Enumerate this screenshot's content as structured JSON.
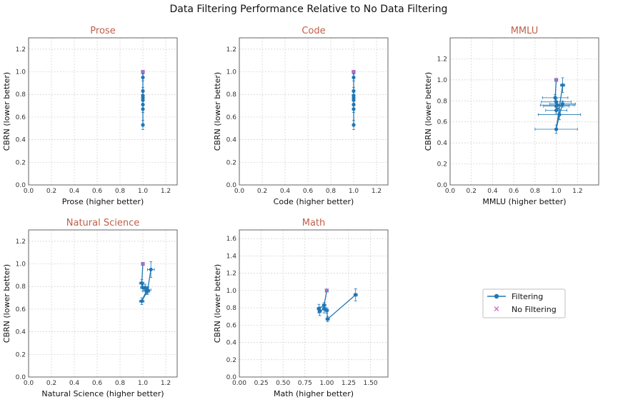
{
  "figure": {
    "title": "Data Filtering Performance Relative to No Data Filtering"
  },
  "colors": {
    "series": "#1f77b4",
    "no_filtering": "#d36cc6",
    "title": "#c0604a",
    "grid": "#cfcfcf",
    "axis": "#555555"
  },
  "legend": {
    "placement": "right of bottom row",
    "items": [
      {
        "label": "Filtering",
        "marker": "line-dot"
      },
      {
        "label": "No Filtering",
        "marker": "x"
      }
    ]
  },
  "chart_data": [
    {
      "type": "scatter",
      "title": "Prose",
      "xlabel": "Prose (higher better)",
      "ylabel": "CBRN (lower better)",
      "xlim": [
        0,
        1.3
      ],
      "ylim": [
        0,
        1.3
      ],
      "xticks": [
        0.0,
        0.2,
        0.4,
        0.6,
        0.8,
        1.0,
        1.2
      ],
      "yticks": [
        0.0,
        0.2,
        0.4,
        0.6,
        0.8,
        1.0,
        1.2
      ],
      "grid": true,
      "series": [
        {
          "name": "Filtering",
          "x": [
            1.0,
            1.0,
            1.0,
            1.0,
            1.0,
            1.0,
            1.0,
            1.0,
            1.0
          ],
          "y": [
            0.95,
            0.83,
            0.79,
            0.77,
            0.75,
            0.71,
            0.67,
            0.53,
            1.0
          ],
          "xerr": [
            0.005,
            0.005,
            0.005,
            0.005,
            0.005,
            0.005,
            0.005,
            0.005,
            0
          ],
          "yerr": [
            0.03,
            0.03,
            0.03,
            0.03,
            0.03,
            0.03,
            0.03,
            0.04,
            0
          ]
        },
        {
          "name": "No Filtering",
          "x": [
            1.0
          ],
          "y": [
            1.0
          ]
        }
      ]
    },
    {
      "type": "scatter",
      "title": "Code",
      "xlabel": "Code (higher better)",
      "ylabel": "CBRN (lower better)",
      "xlim": [
        0,
        1.3
      ],
      "ylim": [
        0,
        1.3
      ],
      "xticks": [
        0.0,
        0.2,
        0.4,
        0.6,
        0.8,
        1.0,
        1.2
      ],
      "yticks": [
        0.0,
        0.2,
        0.4,
        0.6,
        0.8,
        1.0,
        1.2
      ],
      "grid": true,
      "series": [
        {
          "name": "Filtering",
          "x": [
            1.0,
            1.0,
            1.0,
            1.0,
            1.0,
            1.0,
            1.0,
            1.0,
            1.0
          ],
          "y": [
            0.95,
            0.83,
            0.79,
            0.77,
            0.75,
            0.71,
            0.67,
            0.53,
            1.0
          ],
          "xerr": [
            0.005,
            0.005,
            0.005,
            0.005,
            0.005,
            0.005,
            0.005,
            0.005,
            0
          ],
          "yerr": [
            0.03,
            0.03,
            0.03,
            0.03,
            0.03,
            0.03,
            0.03,
            0.04,
            0
          ]
        },
        {
          "name": "No Filtering",
          "x": [
            1.0
          ],
          "y": [
            1.0
          ]
        }
      ]
    },
    {
      "type": "scatter",
      "title": "MMLU",
      "xlabel": "MMLU (higher better)",
      "ylabel": "CBRN (lower better)",
      "xlim": [
        0,
        1.4
      ],
      "ylim": [
        0,
        1.4
      ],
      "xticks": [
        0.0,
        0.2,
        0.4,
        0.6,
        0.8,
        1.0,
        1.2
      ],
      "yticks": [
        0.0,
        0.2,
        0.4,
        0.6,
        0.8,
        1.0,
        1.2
      ],
      "grid": true,
      "series": [
        {
          "name": "Filtering",
          "x": [
            1.0,
            0.99,
            1.0,
            1.01,
            1.0,
            1.0,
            1.06,
            1.03,
            1.0,
            1.06
          ],
          "y": [
            1.0,
            0.83,
            0.79,
            0.76,
            0.75,
            0.71,
            0.77,
            0.67,
            0.53,
            0.95
          ],
          "xerr": [
            0,
            0.12,
            0.14,
            0.16,
            0.12,
            0.1,
            0.12,
            0.2,
            0.2,
            0.02
          ],
          "yerr": [
            0,
            0.03,
            0.03,
            0.03,
            0.03,
            0.03,
            0.03,
            0.05,
            0.04,
            0.07
          ]
        },
        {
          "name": "No Filtering",
          "x": [
            1.0
          ],
          "y": [
            1.0
          ]
        }
      ]
    },
    {
      "type": "scatter",
      "title": "Natural Science",
      "xlabel": "Natural Science (higher better)",
      "ylabel": "CBRN (lower better)",
      "xlim": [
        0,
        1.3
      ],
      "ylim": [
        0,
        1.3
      ],
      "xticks": [
        0.0,
        0.2,
        0.4,
        0.6,
        0.8,
        1.0,
        1.2
      ],
      "yticks": [
        0.0,
        0.2,
        0.4,
        0.6,
        0.8,
        1.0,
        1.2
      ],
      "grid": true,
      "series": [
        {
          "name": "Filtering",
          "x": [
            1.0,
            0.99,
            1.0,
            1.02,
            1.04,
            1.03,
            0.99,
            1.04,
            1.07
          ],
          "y": [
            1.0,
            0.83,
            0.79,
            0.79,
            0.77,
            0.76,
            0.67,
            0.76,
            0.95
          ],
          "xerr": [
            0,
            0.02,
            0.02,
            0.03,
            0.03,
            0.03,
            0.02,
            0.02,
            0.03
          ],
          "yerr": [
            0,
            0.03,
            0.03,
            0.03,
            0.03,
            0.03,
            0.03,
            0.03,
            0.07
          ]
        },
        {
          "name": "No Filtering",
          "x": [
            1.0
          ],
          "y": [
            1.0
          ]
        }
      ]
    },
    {
      "type": "scatter",
      "title": "Math",
      "xlabel": "Math (higher better)",
      "ylabel": "CBRN (lower better)",
      "xlim": [
        0,
        1.7
      ],
      "ylim": [
        0,
        1.7
      ],
      "xticks": [
        0.0,
        0.25,
        0.5,
        0.75,
        1.0,
        1.25,
        1.5
      ],
      "xticklabels": [
        "0.00",
        "0.25",
        "0.50",
        "0.75",
        "1.00",
        "1.25",
        "1.50"
      ],
      "yticks": [
        0.0,
        0.2,
        0.4,
        0.6,
        0.8,
        1.0,
        1.2,
        1.4,
        1.6
      ],
      "grid": true,
      "series": [
        {
          "name": "Filtering",
          "x": [
            1.0,
            0.97,
            0.91,
            0.92,
            0.97,
            1.0,
            1.01,
            1.33
          ],
          "y": [
            1.0,
            0.83,
            0.79,
            0.76,
            0.79,
            0.77,
            0.67,
            0.95
          ],
          "xerr": [
            0,
            0.02,
            0.02,
            0.02,
            0.02,
            0.02,
            0.02,
            0.02
          ],
          "yerr": [
            0,
            0.03,
            0.05,
            0.05,
            0.05,
            0.03,
            0.03,
            0.07
          ]
        },
        {
          "name": "No Filtering",
          "x": [
            1.0
          ],
          "y": [
            1.0
          ]
        }
      ]
    }
  ]
}
